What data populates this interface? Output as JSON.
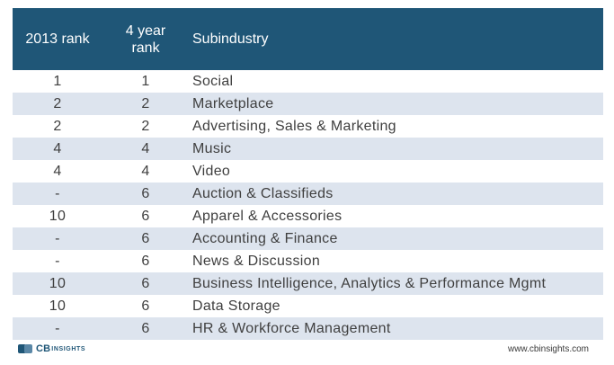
{
  "table": {
    "headers": {
      "rank_2013": "2013 rank",
      "rank_4year_line1": "4 year",
      "rank_4year_line2": "rank",
      "subindustry": "Subindustry"
    },
    "rows": [
      {
        "rank_2013": "1",
        "rank_4year": "1",
        "subindustry": "Social"
      },
      {
        "rank_2013": "2",
        "rank_4year": "2",
        "subindustry": "Marketplace"
      },
      {
        "rank_2013": "2",
        "rank_4year": "2",
        "subindustry": "Advertising, Sales & Marketing"
      },
      {
        "rank_2013": "4",
        "rank_4year": "4",
        "subindustry": "Music"
      },
      {
        "rank_2013": "4",
        "rank_4year": "4",
        "subindustry": "Video"
      },
      {
        "rank_2013": "-",
        "rank_4year": "6",
        "subindustry": "Auction & Classifieds"
      },
      {
        "rank_2013": "10",
        "rank_4year": "6",
        "subindustry": "Apparel & Accessories"
      },
      {
        "rank_2013": "-",
        "rank_4year": "6",
        "subindustry": "Accounting & Finance"
      },
      {
        "rank_2013": "-",
        "rank_4year": "6",
        "subindustry": "News & Discussion"
      },
      {
        "rank_2013": "10",
        "rank_4year": "6",
        "subindustry": "Business Intelligence, Analytics & Performance Mgmt"
      },
      {
        "rank_2013": "10",
        "rank_4year": "6",
        "subindustry": "Data Storage"
      },
      {
        "rank_2013": "-",
        "rank_4year": "6",
        "subindustry": "HR & Workforce Management"
      }
    ]
  },
  "footer": {
    "logo_cb": "CB",
    "logo_insights": "INSIGHTS",
    "url": "www.cbinsights.com"
  },
  "colors": {
    "header_bg": "#1f5677",
    "stripe_bg": "#dde4ee",
    "logo_primary": "#1f5677",
    "logo_secondary": "#5a87a6"
  }
}
